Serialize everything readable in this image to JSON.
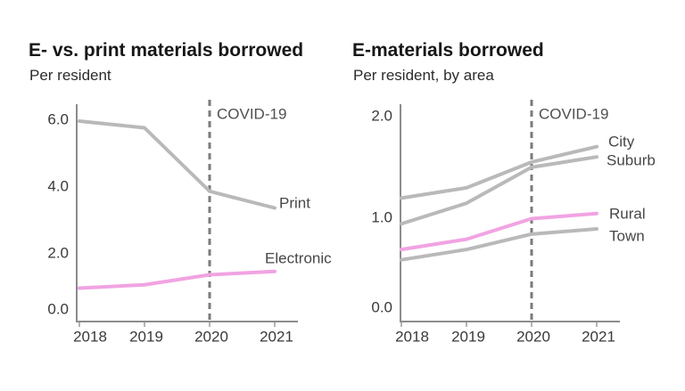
{
  "colors": {
    "gray": "#b9b9b9",
    "pink": "#f1a3e2",
    "axis": "#8c8c8c",
    "tick": "#b4b4b4",
    "dashed": "#7b7b7b",
    "tick_text": "#3a3a3a",
    "annotation_text": "#4f4f4f",
    "series_label_text": "#474747",
    "title_text": "#171717"
  },
  "chart_data": [
    {
      "type": "line",
      "title": "E- vs. print materials borrowed",
      "subtitle": "Per resident",
      "x": [
        "2018",
        "2019",
        "2020",
        "2021"
      ],
      "series": [
        {
          "name": "Print",
          "color": "gray",
          "values": [
            6.0,
            5.8,
            3.9,
            3.4
          ]
        },
        {
          "name": "Electronic",
          "color": "pink",
          "values": [
            1.0,
            1.1,
            1.4,
            1.5
          ]
        }
      ],
      "yticks": [
        "0.0",
        "2.0",
        "4.0",
        "6.0"
      ],
      "ylim": [
        0,
        6.5
      ],
      "grid": false,
      "legend_position": "end-of-line-labels",
      "annotation": {
        "label": "COVID-19",
        "x": "2020",
        "style": "dashed-vertical"
      }
    },
    {
      "type": "line",
      "title": "E-materials borrowed",
      "subtitle": "Per resident, by area",
      "x": [
        "2018",
        "2019",
        "2020",
        "2021"
      ],
      "series": [
        {
          "name": "City",
          "color": "gray",
          "values": [
            1.2,
            1.3,
            1.55,
            1.7
          ]
        },
        {
          "name": "Suburb",
          "color": "gray",
          "values": [
            0.95,
            1.15,
            1.5,
            1.6
          ]
        },
        {
          "name": "Rural",
          "color": "pink",
          "values": [
            0.7,
            0.8,
            1.0,
            1.05
          ]
        },
        {
          "name": "Town",
          "color": "gray",
          "values": [
            0.6,
            0.7,
            0.85,
            0.9
          ]
        }
      ],
      "yticks": [
        "0.0",
        "1.0",
        "2.0"
      ],
      "ylim": [
        0,
        2.1
      ],
      "grid": false,
      "legend_position": "end-of-line-labels",
      "annotation": {
        "label": "COVID-19",
        "x": "2020",
        "style": "dashed-vertical"
      }
    }
  ]
}
